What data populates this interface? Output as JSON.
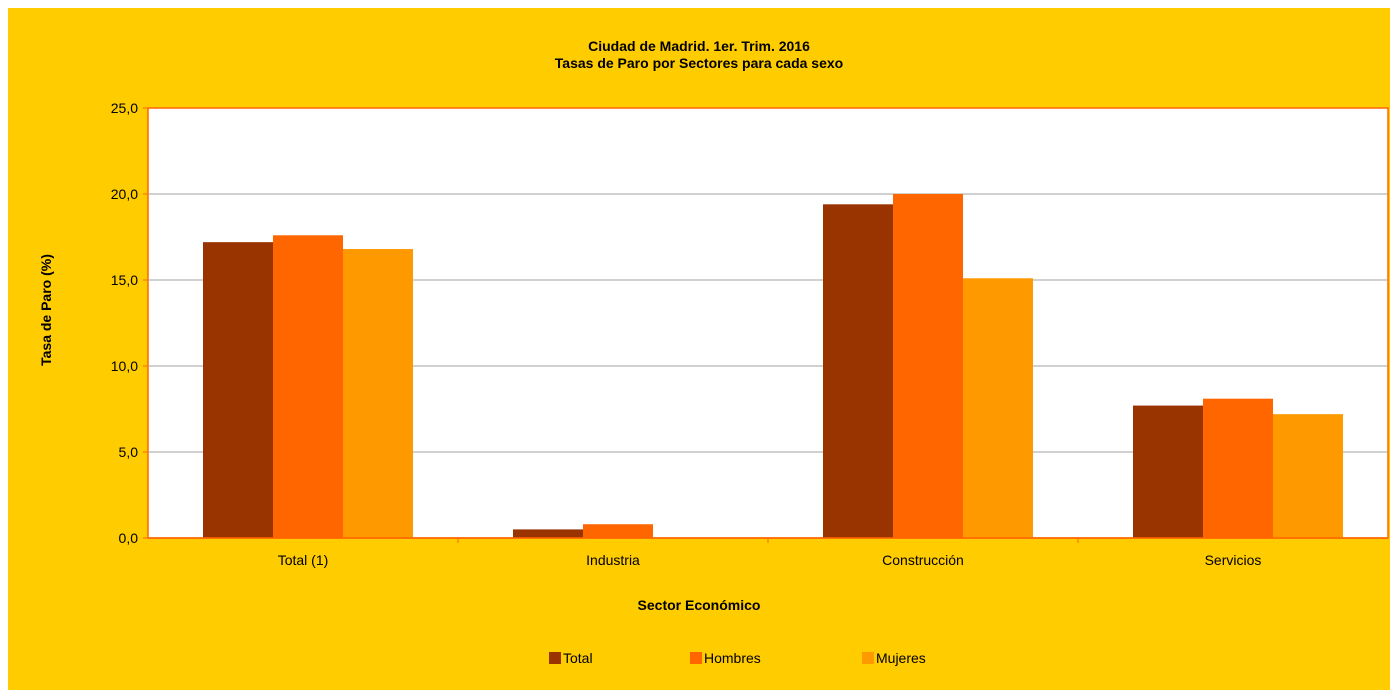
{
  "chart_data": {
    "type": "bar",
    "title": [
      "Ciudad de Madrid. 1er. Trim. 2016",
      "Tasas de Paro por Sectores para cada sexo"
    ],
    "xlabel": "Sector Económico",
    "ylabel": "Tasa de Paro (%)",
    "categories": [
      "Total (1)",
      "Industria",
      "Construcción",
      "Servicios"
    ],
    "series": [
      {
        "name": "Total",
        "color": "#993300",
        "values": [
          17.2,
          0.5,
          19.4,
          7.7
        ]
      },
      {
        "name": "Hombres",
        "color": "#FF6600",
        "values": [
          17.6,
          0.8,
          20.0,
          8.1
        ]
      },
      {
        "name": "Mujeres",
        "color": "#FF9900",
        "values": [
          16.8,
          0.0,
          15.1,
          7.2
        ]
      }
    ],
    "ylim": [
      0,
      25
    ],
    "yticks": [
      "0,0",
      "5,0",
      "10,0",
      "15,0",
      "20,0",
      "25,0"
    ],
    "grid": true,
    "legend_position": "bottom",
    "background_color": "#FFCC00",
    "plot_background": "#FFFFFF",
    "gridline_color": "#A0A0A0",
    "axis_color": "#FF6600"
  }
}
